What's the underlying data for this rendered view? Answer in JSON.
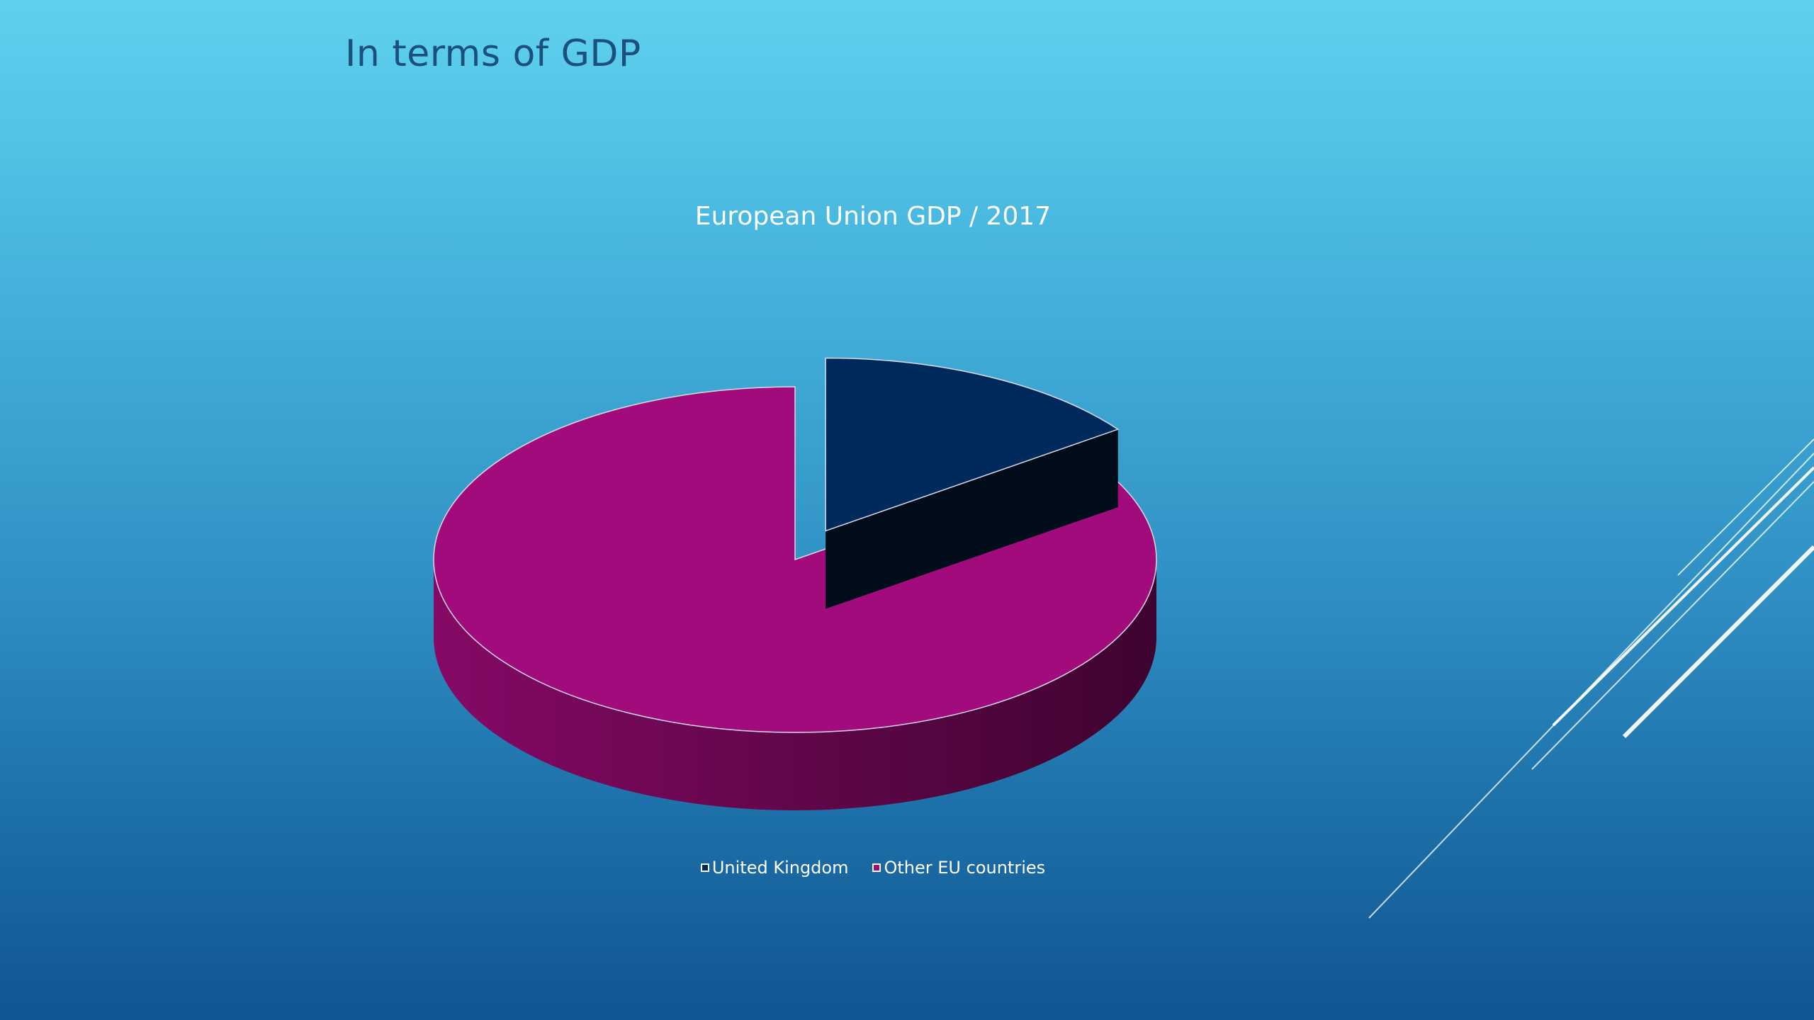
{
  "slide": {
    "title": "In terms of GDP"
  },
  "colors": {
    "united_kingdom": "#002a5c",
    "other_eu": "#a20b7c",
    "title_text": "#1b4f7c"
  },
  "chart_data": {
    "type": "pie",
    "style": "3d-exploded",
    "title": "European Union GDP / 2017",
    "categories": [
      "United Kingdom",
      "Other EU countries"
    ],
    "values": [
      15,
      85
    ],
    "unit": "percent",
    "legend_position": "bottom",
    "series": [
      {
        "values": [
          15,
          85
        ]
      }
    ]
  }
}
